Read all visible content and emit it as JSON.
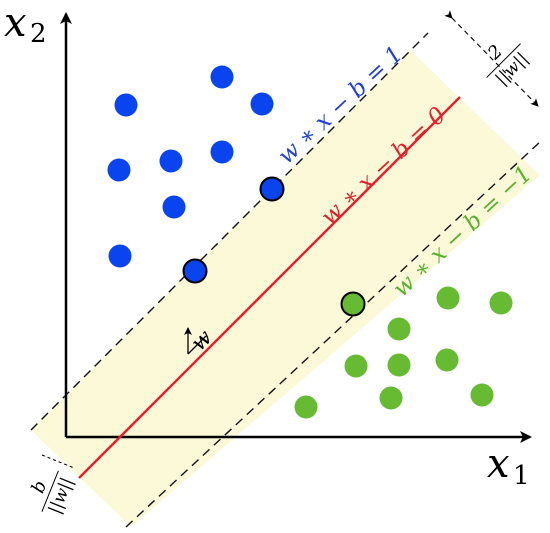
{
  "axes": {
    "x_label": "x",
    "x_sub": "1",
    "y_label": "x",
    "y_sub": "2"
  },
  "lines": {
    "upper_margin": "w ∗ x − b = 1",
    "decision_boundary": "w ∗ x − b = 0",
    "lower_margin": "w ∗ x − b = −1"
  },
  "annotations": {
    "normal_vector": "w",
    "offset_numerator": "b",
    "offset_denominator": "||w||",
    "margin_numerator": "2",
    "margin_denominator": "||w||"
  },
  "colors": {
    "class_positive": "#0a44ee",
    "class_negative": "#66bb33",
    "boundary": "#e3202b",
    "margin_band": "#fbf9d8",
    "upper_margin_label": "#1f3fd8",
    "lower_margin_label": "#5bb030"
  },
  "points": {
    "class_positive": [
      {
        "support_vector": false
      },
      {
        "support_vector": false
      },
      {
        "support_vector": false
      },
      {
        "support_vector": false
      },
      {
        "support_vector": false
      },
      {
        "support_vector": false
      },
      {
        "support_vector": false
      },
      {
        "support_vector": false
      },
      {
        "support_vector": true
      },
      {
        "support_vector": true
      }
    ],
    "class_negative": [
      {
        "support_vector": false
      },
      {
        "support_vector": false
      },
      {
        "support_vector": false
      },
      {
        "support_vector": false
      },
      {
        "support_vector": false
      },
      {
        "support_vector": false
      },
      {
        "support_vector": false
      },
      {
        "support_vector": false
      },
      {
        "support_vector": false
      },
      {
        "support_vector": true
      }
    ]
  }
}
